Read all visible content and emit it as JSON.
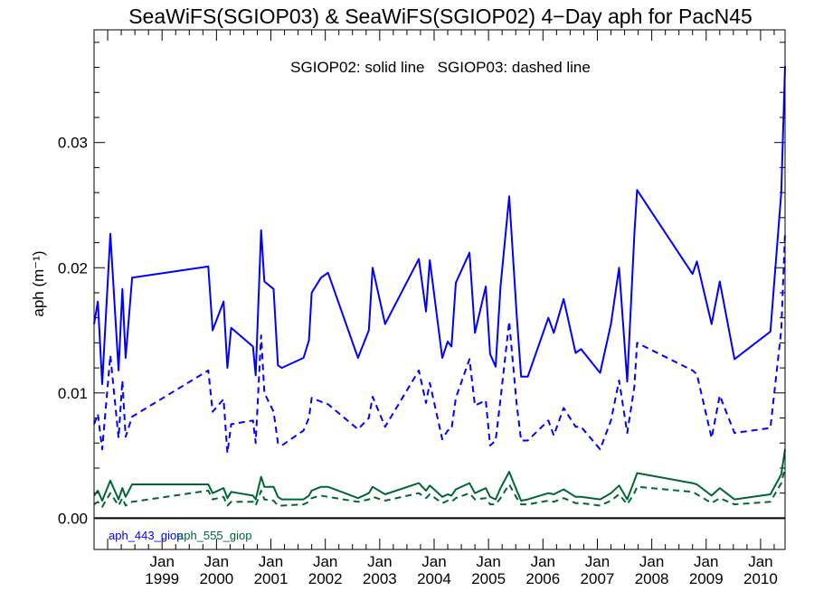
{
  "chart_data": {
    "type": "line",
    "title": "SeaWiFS(SGIOP03) & SeaWiFS(SGIOP02) 4−Day aph for PacN45",
    "subtitle": "SGIOP02: solid line   SGIOP03: dashed line",
    "ylabel": "aph (m⁻¹)",
    "xlabel": "",
    "xlim": [
      1997.75,
      2010.45
    ],
    "ylim": [
      -0.0025,
      0.039
    ],
    "x_ticks": [
      {
        "month": "Jan",
        "year": "1999",
        "x": 1999.0
      },
      {
        "month": "Jan",
        "year": "2000",
        "x": 2000.0
      },
      {
        "month": "Jan",
        "year": "2001",
        "x": 2001.0
      },
      {
        "month": "Jan",
        "year": "2002",
        "x": 2002.0
      },
      {
        "month": "Jan",
        "year": "2003",
        "x": 2003.0
      },
      {
        "month": "Jan",
        "year": "2004",
        "x": 2004.0
      },
      {
        "month": "Jan",
        "year": "2005",
        "x": 2005.0
      },
      {
        "month": "Jan",
        "year": "2006",
        "x": 2006.0
      },
      {
        "month": "Jan",
        "year": "2007",
        "x": 2007.0
      },
      {
        "month": "Jan",
        "year": "2008",
        "x": 2008.0
      },
      {
        "month": "Jan",
        "year": "2009",
        "x": 2009.0
      },
      {
        "month": "Jan",
        "year": "2010",
        "x": 2010.0
      }
    ],
    "y_ticks": [
      {
        "label": "0.00",
        "value": 0.0
      },
      {
        "label": "0.01",
        "value": 0.01
      },
      {
        "label": "0.02",
        "value": 0.02
      },
      {
        "label": "0.03",
        "value": 0.03
      }
    ],
    "zero_line": 0.0,
    "legend": {
      "placement": "bottom-left",
      "entries": [
        {
          "label": "aph_443_giop",
          "color": "#0000ff"
        },
        {
          "label": "aph_555_giop",
          "color": "#006633"
        }
      ]
    },
    "series": [
      {
        "name": "aph_443_giop",
        "color": "#0000ff",
        "style": "solid",
        "points": [
          [
            1997.75,
            0.0155
          ],
          [
            1997.82,
            0.0173
          ],
          [
            1997.9,
            0.0107
          ],
          [
            1998.05,
            0.0227
          ],
          [
            1998.2,
            0.0118
          ],
          [
            1998.27,
            0.0183
          ],
          [
            1998.33,
            0.0128
          ],
          [
            1998.45,
            0.0192
          ],
          [
            1999.85,
            0.0201
          ],
          [
            1999.93,
            0.015
          ],
          [
            2000.13,
            0.0173
          ],
          [
            2000.2,
            0.012
          ],
          [
            2000.27,
            0.0152
          ],
          [
            2000.67,
            0.0137
          ],
          [
            2000.72,
            0.0114
          ],
          [
            2000.82,
            0.023
          ],
          [
            2000.88,
            0.0189
          ],
          [
            2001.05,
            0.0183
          ],
          [
            2001.13,
            0.0122
          ],
          [
            2001.2,
            0.012
          ],
          [
            2001.6,
            0.0128
          ],
          [
            2001.7,
            0.0142
          ],
          [
            2001.75,
            0.018
          ],
          [
            2001.92,
            0.0192
          ],
          [
            2002.05,
            0.0196
          ],
          [
            2002.6,
            0.0128
          ],
          [
            2002.8,
            0.015
          ],
          [
            2002.87,
            0.02
          ],
          [
            2003.1,
            0.0155
          ],
          [
            2003.72,
            0.0207
          ],
          [
            2003.85,
            0.0165
          ],
          [
            2003.92,
            0.0206
          ],
          [
            2004.15,
            0.0128
          ],
          [
            2004.25,
            0.0141
          ],
          [
            2004.32,
            0.0137
          ],
          [
            2004.4,
            0.0188
          ],
          [
            2004.65,
            0.0212
          ],
          [
            2004.75,
            0.0148
          ],
          [
            2004.95,
            0.0185
          ],
          [
            2005.03,
            0.0131
          ],
          [
            2005.13,
            0.0121
          ],
          [
            2005.22,
            0.0185
          ],
          [
            2005.38,
            0.0257
          ],
          [
            2005.52,
            0.0161
          ],
          [
            2005.6,
            0.0113
          ],
          [
            2005.72,
            0.0113
          ],
          [
            2006.1,
            0.016
          ],
          [
            2006.2,
            0.0148
          ],
          [
            2006.38,
            0.0175
          ],
          [
            2006.6,
            0.0132
          ],
          [
            2006.7,
            0.0135
          ],
          [
            2007.05,
            0.0116
          ],
          [
            2007.25,
            0.0155
          ],
          [
            2007.4,
            0.02
          ],
          [
            2007.55,
            0.0109
          ],
          [
            2007.68,
            0.0227
          ],
          [
            2007.73,
            0.0262
          ],
          [
            2008.75,
            0.0195
          ],
          [
            2008.83,
            0.0205
          ],
          [
            2009.1,
            0.0155
          ],
          [
            2009.25,
            0.0189
          ],
          [
            2009.52,
            0.0127
          ],
          [
            2010.18,
            0.0149
          ],
          [
            2010.38,
            0.026
          ],
          [
            2010.45,
            0.0361
          ]
        ]
      },
      {
        "name": "aph_443_giop",
        "color": "#0000ff",
        "style": "dashed",
        "points": [
          [
            1997.75,
            0.0075
          ],
          [
            1997.82,
            0.0083
          ],
          [
            1997.9,
            0.0055
          ],
          [
            1998.05,
            0.013
          ],
          [
            1998.2,
            0.0064
          ],
          [
            1998.27,
            0.011
          ],
          [
            1998.33,
            0.0065
          ],
          [
            1998.45,
            0.0081
          ],
          [
            1999.85,
            0.0118
          ],
          [
            1999.93,
            0.0085
          ],
          [
            2000.13,
            0.0095
          ],
          [
            2000.2,
            0.0052
          ],
          [
            2000.27,
            0.0075
          ],
          [
            2000.67,
            0.0078
          ],
          [
            2000.72,
            0.006
          ],
          [
            2000.82,
            0.0146
          ],
          [
            2000.88,
            0.01
          ],
          [
            2001.05,
            0.0085
          ],
          [
            2001.13,
            0.006
          ],
          [
            2001.2,
            0.0058
          ],
          [
            2001.6,
            0.007
          ],
          [
            2001.7,
            0.008
          ],
          [
            2001.75,
            0.0096
          ],
          [
            2001.92,
            0.0093
          ],
          [
            2002.05,
            0.0091
          ],
          [
            2002.6,
            0.0071
          ],
          [
            2002.8,
            0.008
          ],
          [
            2002.87,
            0.0097
          ],
          [
            2003.1,
            0.0073
          ],
          [
            2003.72,
            0.0118
          ],
          [
            2003.85,
            0.0092
          ],
          [
            2003.92,
            0.0108
          ],
          [
            2004.15,
            0.0063
          ],
          [
            2004.25,
            0.007
          ],
          [
            2004.32,
            0.0071
          ],
          [
            2004.4,
            0.0096
          ],
          [
            2004.65,
            0.0127
          ],
          [
            2004.75,
            0.009
          ],
          [
            2004.95,
            0.0094
          ],
          [
            2005.03,
            0.0058
          ],
          [
            2005.13,
            0.0062
          ],
          [
            2005.22,
            0.0095
          ],
          [
            2005.38,
            0.0157
          ],
          [
            2005.52,
            0.009
          ],
          [
            2005.6,
            0.0062
          ],
          [
            2005.72,
            0.0062
          ],
          [
            2006.1,
            0.0078
          ],
          [
            2006.2,
            0.0066
          ],
          [
            2006.38,
            0.0088
          ],
          [
            2006.6,
            0.0073
          ],
          [
            2006.7,
            0.0073
          ],
          [
            2007.05,
            0.0055
          ],
          [
            2007.25,
            0.0078
          ],
          [
            2007.4,
            0.011
          ],
          [
            2007.55,
            0.0068
          ],
          [
            2007.68,
            0.0105
          ],
          [
            2007.73,
            0.014
          ],
          [
            2008.75,
            0.0118
          ],
          [
            2008.83,
            0.0115
          ],
          [
            2009.1,
            0.0064
          ],
          [
            2009.25,
            0.0098
          ],
          [
            2009.52,
            0.0068
          ],
          [
            2010.18,
            0.0072
          ],
          [
            2010.38,
            0.015
          ],
          [
            2010.45,
            0.0228
          ]
        ]
      },
      {
        "name": "aph_555_giop",
        "color": "#006633",
        "style": "solid",
        "points": [
          [
            1997.75,
            0.0018
          ],
          [
            1997.82,
            0.0022
          ],
          [
            1997.9,
            0.0014
          ],
          [
            1998.05,
            0.003
          ],
          [
            1998.2,
            0.0015
          ],
          [
            1998.27,
            0.0024
          ],
          [
            1998.33,
            0.0017
          ],
          [
            1998.45,
            0.0027
          ],
          [
            1999.85,
            0.0027
          ],
          [
            1999.93,
            0.002
          ],
          [
            2000.13,
            0.0024
          ],
          [
            2000.2,
            0.0016
          ],
          [
            2000.27,
            0.0021
          ],
          [
            2000.67,
            0.0018
          ],
          [
            2000.72,
            0.0015
          ],
          [
            2000.82,
            0.0033
          ],
          [
            2000.88,
            0.0025
          ],
          [
            2001.05,
            0.0025
          ],
          [
            2001.13,
            0.0017
          ],
          [
            2001.2,
            0.0015
          ],
          [
            2001.6,
            0.0015
          ],
          [
            2001.7,
            0.0018
          ],
          [
            2001.75,
            0.0022
          ],
          [
            2001.92,
            0.0025
          ],
          [
            2002.05,
            0.0025
          ],
          [
            2002.6,
            0.0016
          ],
          [
            2002.8,
            0.002
          ],
          [
            2002.87,
            0.0025
          ],
          [
            2003.1,
            0.0019
          ],
          [
            2003.72,
            0.0028
          ],
          [
            2003.85,
            0.0022
          ],
          [
            2003.92,
            0.0026
          ],
          [
            2004.15,
            0.0017
          ],
          [
            2004.25,
            0.0019
          ],
          [
            2004.32,
            0.0018
          ],
          [
            2004.4,
            0.0023
          ],
          [
            2004.65,
            0.0028
          ],
          [
            2004.75,
            0.002
          ],
          [
            2004.95,
            0.0024
          ],
          [
            2005.03,
            0.0017
          ],
          [
            2005.13,
            0.0015
          ],
          [
            2005.22,
            0.0024
          ],
          [
            2005.38,
            0.0037
          ],
          [
            2005.52,
            0.0022
          ],
          [
            2005.6,
            0.0014
          ],
          [
            2005.72,
            0.0015
          ],
          [
            2006.1,
            0.002
          ],
          [
            2006.2,
            0.0019
          ],
          [
            2006.38,
            0.0023
          ],
          [
            2006.6,
            0.0017
          ],
          [
            2006.7,
            0.0017
          ],
          [
            2007.05,
            0.0015
          ],
          [
            2007.25,
            0.002
          ],
          [
            2007.4,
            0.0026
          ],
          [
            2007.55,
            0.0015
          ],
          [
            2007.68,
            0.003
          ],
          [
            2007.73,
            0.0036
          ],
          [
            2008.75,
            0.0028
          ],
          [
            2008.83,
            0.0027
          ],
          [
            2009.1,
            0.0018
          ],
          [
            2009.25,
            0.0024
          ],
          [
            2009.52,
            0.0015
          ],
          [
            2010.18,
            0.0019
          ],
          [
            2010.38,
            0.0035
          ],
          [
            2010.45,
            0.0055
          ]
        ]
      },
      {
        "name": "aph_555_giop",
        "color": "#006633",
        "style": "dashed",
        "points": [
          [
            1997.75,
            0.0011
          ],
          [
            1997.82,
            0.0013
          ],
          [
            1997.9,
            0.0009
          ],
          [
            1998.05,
            0.002
          ],
          [
            1998.2,
            0.001
          ],
          [
            1998.27,
            0.0016
          ],
          [
            1998.33,
            0.001
          ],
          [
            1998.45,
            0.0013
          ],
          [
            1999.85,
            0.0022
          ],
          [
            1999.93,
            0.0015
          ],
          [
            2000.13,
            0.0017
          ],
          [
            2000.2,
            0.001
          ],
          [
            2000.27,
            0.0013
          ],
          [
            2000.67,
            0.0013
          ],
          [
            2000.72,
            0.001
          ],
          [
            2000.82,
            0.0022
          ],
          [
            2000.88,
            0.0015
          ],
          [
            2001.05,
            0.0014
          ],
          [
            2001.13,
            0.001
          ],
          [
            2001.2,
            0.001
          ],
          [
            2001.6,
            0.0011
          ],
          [
            2001.7,
            0.0013
          ],
          [
            2001.75,
            0.0016
          ],
          [
            2001.92,
            0.0018
          ],
          [
            2002.05,
            0.0017
          ],
          [
            2002.6,
            0.0013
          ],
          [
            2002.8,
            0.0015
          ],
          [
            2002.87,
            0.0017
          ],
          [
            2003.1,
            0.0014
          ],
          [
            2003.72,
            0.002
          ],
          [
            2003.85,
            0.0016
          ],
          [
            2003.92,
            0.0019
          ],
          [
            2004.15,
            0.0012
          ],
          [
            2004.25,
            0.0014
          ],
          [
            2004.32,
            0.0013
          ],
          [
            2004.4,
            0.0016
          ],
          [
            2004.65,
            0.002
          ],
          [
            2004.75,
            0.0015
          ],
          [
            2004.95,
            0.0016
          ],
          [
            2005.03,
            0.0011
          ],
          [
            2005.13,
            0.0011
          ],
          [
            2005.22,
            0.0016
          ],
          [
            2005.38,
            0.0027
          ],
          [
            2005.52,
            0.0016
          ],
          [
            2005.6,
            0.0011
          ],
          [
            2005.72,
            0.0011
          ],
          [
            2006.1,
            0.0014
          ],
          [
            2006.2,
            0.0013
          ],
          [
            2006.38,
            0.0016
          ],
          [
            2006.6,
            0.0012
          ],
          [
            2006.7,
            0.0012
          ],
          [
            2007.05,
            0.001
          ],
          [
            2007.25,
            0.0014
          ],
          [
            2007.4,
            0.0019
          ],
          [
            2007.55,
            0.0011
          ],
          [
            2007.68,
            0.002
          ],
          [
            2007.73,
            0.0025
          ],
          [
            2008.75,
            0.0021
          ],
          [
            2008.83,
            0.0019
          ],
          [
            2009.1,
            0.0012
          ],
          [
            2009.25,
            0.0016
          ],
          [
            2009.52,
            0.0011
          ],
          [
            2010.18,
            0.0013
          ],
          [
            2010.38,
            0.0028
          ],
          [
            2010.45,
            0.004
          ]
        ]
      }
    ]
  }
}
